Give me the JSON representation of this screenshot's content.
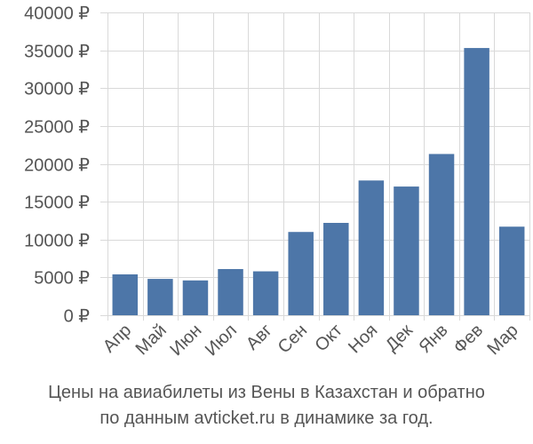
{
  "chart_data": {
    "type": "bar",
    "categories": [
      "Апр",
      "Май",
      "Июн",
      "Июл",
      "Авг",
      "Сен",
      "Окт",
      "Ноя",
      "Дек",
      "Янв",
      "Фев",
      "Мар"
    ],
    "values": [
      5400,
      4800,
      4600,
      6100,
      5800,
      11000,
      12200,
      17800,
      17000,
      21300,
      35300,
      11700
    ],
    "ylim": [
      0,
      40000
    ],
    "yticks": [
      0,
      5000,
      10000,
      15000,
      20000,
      25000,
      30000,
      35000,
      40000
    ],
    "ytick_labels": [
      "0 ₽",
      "5000 ₽",
      "10000 ₽",
      "15000 ₽",
      "20000 ₽",
      "25000 ₽",
      "30000 ₽",
      "35000 ₽",
      "40000 ₽"
    ],
    "grid": true,
    "bar_color": "#4d76a8",
    "grid_color": "#d9d9d9",
    "text_color": "#555555",
    "caption_line1": "Цены на авиабилеты из Вены в Казахстан и обратно",
    "caption_line2": "по данным avticket.ru в динамике за год."
  }
}
